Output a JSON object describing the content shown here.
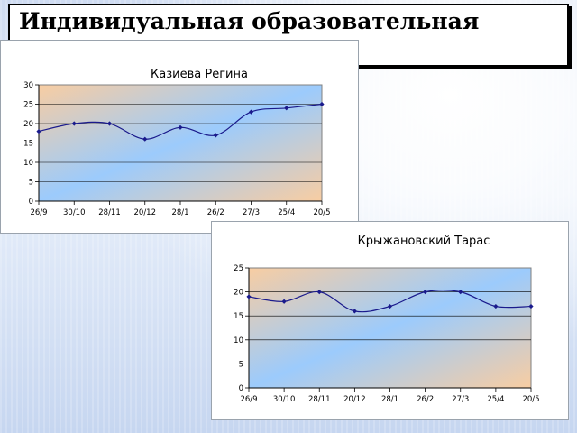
{
  "heading": "Индивидуальная образовательная траектория",
  "chart_data": [
    {
      "type": "line",
      "title": "Казиева Регина",
      "categories": [
        "26/9",
        "30/10",
        "28/11",
        "20/12",
        "28/1",
        "26/2",
        "27/3",
        "25/4",
        "20/5"
      ],
      "values": [
        18,
        20,
        20,
        16,
        19,
        17,
        23,
        24,
        25
      ],
      "ylim": [
        0,
        30
      ],
      "yticks": [
        0,
        5,
        10,
        15,
        20,
        25,
        30
      ],
      "grid": true,
      "line_color": "#1a1a8c",
      "plot_gradient": [
        "#f8cda2",
        "#9ccbfc",
        "#f8cda2"
      ]
    },
    {
      "type": "line",
      "title": "Крыжановский Тарас",
      "categories": [
        "26/9",
        "30/10",
        "28/11",
        "20/12",
        "28/1",
        "26/2",
        "27/3",
        "25/4",
        "20/5"
      ],
      "values": [
        19,
        18,
        20,
        16,
        17,
        20,
        20,
        17,
        17
      ],
      "ylim": [
        0,
        25
      ],
      "yticks": [
        0,
        5,
        10,
        15,
        20,
        25
      ],
      "grid": true,
      "line_color": "#1a1a8c",
      "plot_gradient": [
        "#f8cda2",
        "#9ccbfc",
        "#f8cda2"
      ]
    }
  ]
}
